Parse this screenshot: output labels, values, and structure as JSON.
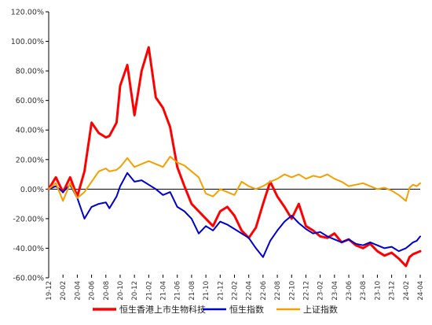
{
  "chart_data": {
    "type": "line",
    "title": "",
    "xlabel": "",
    "ylabel": "",
    "ylim": [
      -0.6,
      1.2
    ],
    "y_format": "percent_2dp",
    "grid": false,
    "legend_position": "bottom",
    "x_tick_labels": [
      "19-12",
      "20-02",
      "20-04",
      "20-06",
      "20-08",
      "20-10",
      "20-12",
      "21-02",
      "21-04",
      "21-06",
      "21-08",
      "21-10",
      "21-12",
      "22-02",
      "22-04",
      "22-06",
      "22-08",
      "22-10",
      "22-12",
      "23-02",
      "23-04",
      "23-06",
      "23-08",
      "23-10",
      "23-12",
      "24-02",
      "24-04"
    ],
    "y_tick_labels": [
      "120.00%",
      "100.00%",
      "80.00%",
      "60.00%",
      "40.00%",
      "20.00%",
      "0.00%",
      "-20.00%",
      "-40.00%",
      "-60.00%"
    ],
    "x_index": [
      0,
      2,
      4,
      6,
      8,
      10,
      12,
      14,
      16,
      17,
      19,
      20,
      22,
      24,
      26,
      28,
      30,
      32,
      34,
      36,
      38,
      40,
      42,
      44,
      46,
      48,
      50,
      52,
      54,
      56,
      58,
      60,
      62,
      64,
      66,
      68,
      70,
      72,
      74,
      76,
      78,
      80,
      82,
      84,
      86,
      88,
      90,
      92,
      94,
      96,
      98,
      100,
      101,
      102,
      103,
      104
    ],
    "series": [
      {
        "name": "恒生香港上市生物科技",
        "color": "#ff0000",
        "values": [
          0,
          0.08,
          -0.02,
          0.08,
          -0.05,
          0.12,
          0.45,
          0.38,
          0.35,
          0.36,
          0.45,
          0.7,
          0.84,
          0.5,
          0.8,
          0.96,
          0.62,
          0.55,
          0.42,
          0.15,
          0.02,
          -0.1,
          -0.15,
          -0.2,
          -0.25,
          -0.15,
          -0.12,
          -0.18,
          -0.28,
          -0.33,
          -0.26,
          -0.1,
          0.05,
          -0.05,
          -0.12,
          -0.2,
          -0.1,
          -0.25,
          -0.28,
          -0.32,
          -0.33,
          -0.3,
          -0.36,
          -0.34,
          -0.38,
          -0.4,
          -0.37,
          -0.42,
          -0.45,
          -0.43,
          -0.47,
          -0.52,
          -0.46,
          -0.44,
          -0.43,
          -0.42
        ]
      },
      {
        "name": "恒生指数",
        "color": "#0000cc",
        "values": [
          0,
          0.02,
          -0.02,
          0.03,
          -0.06,
          -0.2,
          -0.12,
          -0.1,
          -0.09,
          -0.13,
          -0.05,
          0.02,
          0.11,
          0.05,
          0.06,
          0.03,
          0.0,
          -0.04,
          -0.02,
          -0.12,
          -0.15,
          -0.2,
          -0.3,
          -0.25,
          -0.28,
          -0.22,
          -0.24,
          -0.27,
          -0.3,
          -0.33,
          -0.4,
          -0.46,
          -0.35,
          -0.28,
          -0.22,
          -0.18,
          -0.23,
          -0.27,
          -0.3,
          -0.29,
          -0.32,
          -0.34,
          -0.36,
          -0.34,
          -0.37,
          -0.38,
          -0.36,
          -0.38,
          -0.4,
          -0.39,
          -0.42,
          -0.4,
          -0.38,
          -0.36,
          -0.35,
          -0.32
        ]
      },
      {
        "name": "上证指数",
        "color": "#f5a000",
        "values": [
          0,
          0.04,
          -0.08,
          0.04,
          -0.06,
          -0.02,
          0.05,
          0.12,
          0.14,
          0.12,
          0.13,
          0.15,
          0.21,
          0.15,
          0.17,
          0.19,
          0.17,
          0.15,
          0.22,
          0.18,
          0.16,
          0.12,
          0.08,
          -0.03,
          -0.05,
          0.0,
          -0.02,
          -0.04,
          0.05,
          0.02,
          0.0,
          0.02,
          0.05,
          0.07,
          0.1,
          0.08,
          0.1,
          0.07,
          0.09,
          0.08,
          0.1,
          0.07,
          0.05,
          0.02,
          0.03,
          0.04,
          0.02,
          0.0,
          0.01,
          -0.01,
          -0.04,
          -0.08,
          0.01,
          0.03,
          0.02,
          0.04
        ]
      }
    ]
  }
}
